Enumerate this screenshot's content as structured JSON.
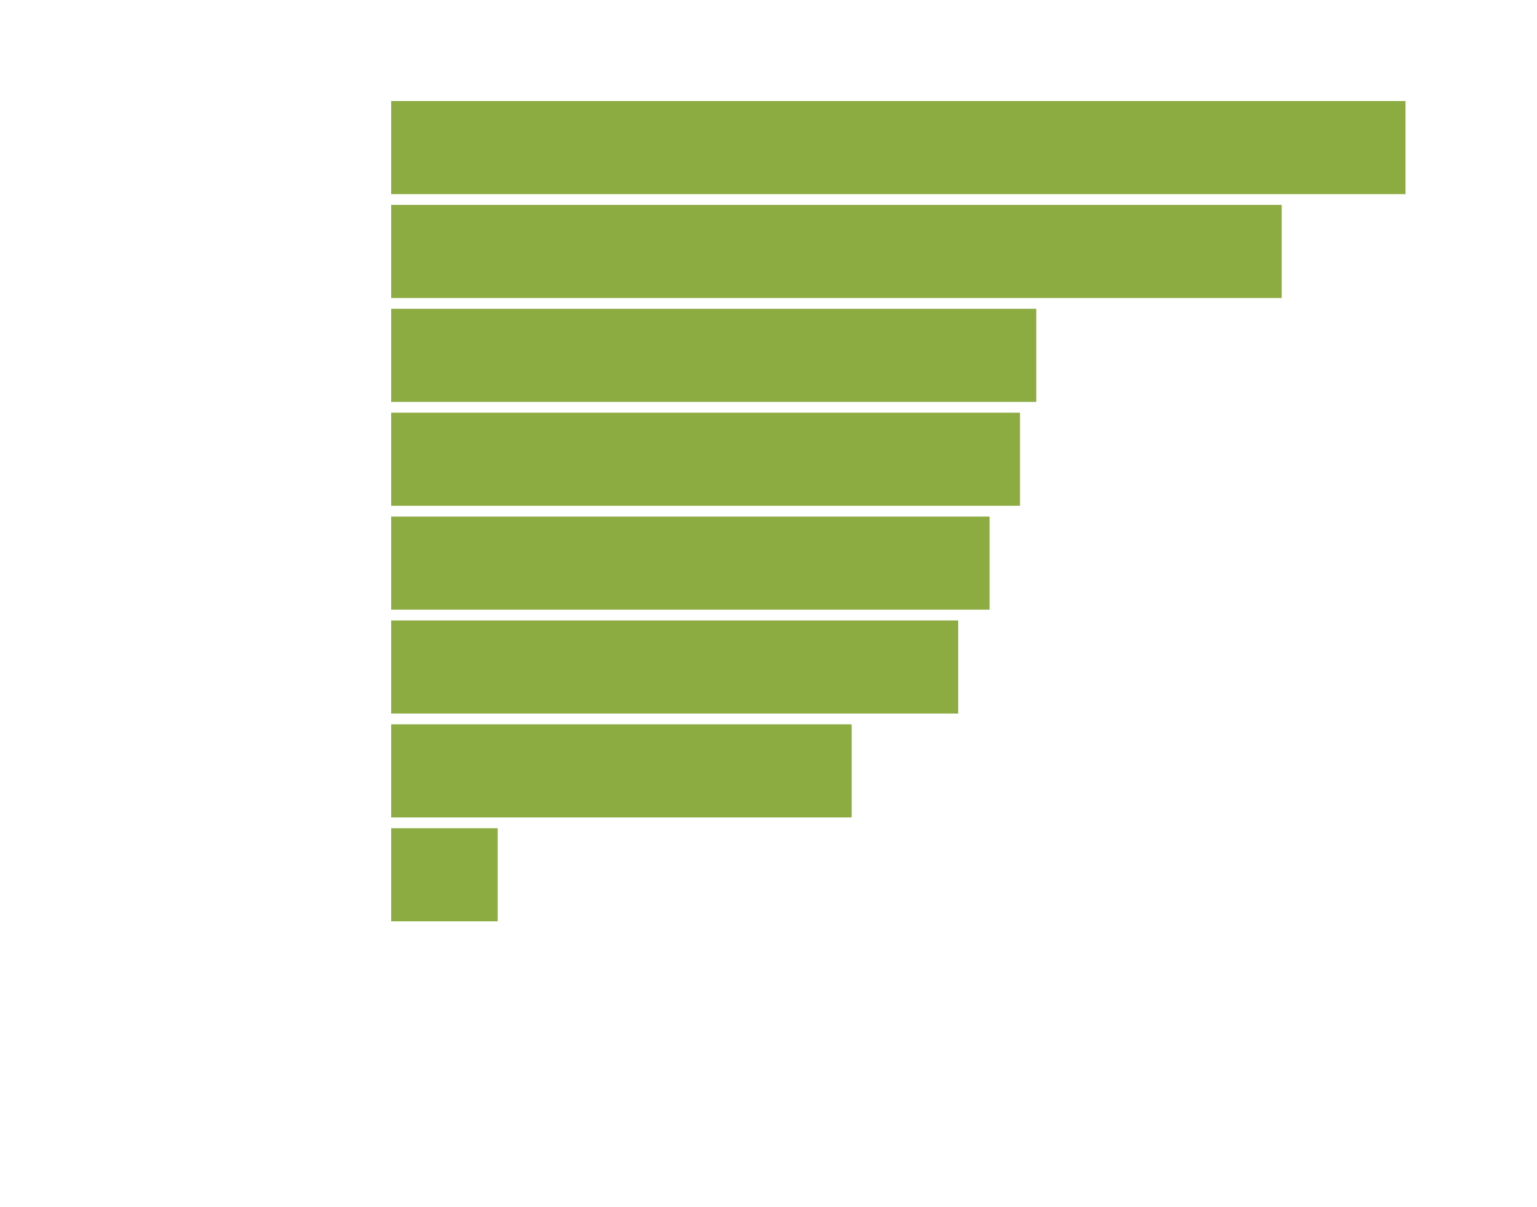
{
  "chart_data": {
    "type": "barh",
    "categories": [
      null,
      null,
      null,
      null,
      null,
      null,
      null,
      null
    ],
    "values": [
      100,
      87.8,
      63.6,
      62.0,
      59.0,
      55.9,
      45.4,
      10.5
    ],
    "color": "#8cab41",
    "xlim": [
      0,
      100
    ]
  }
}
